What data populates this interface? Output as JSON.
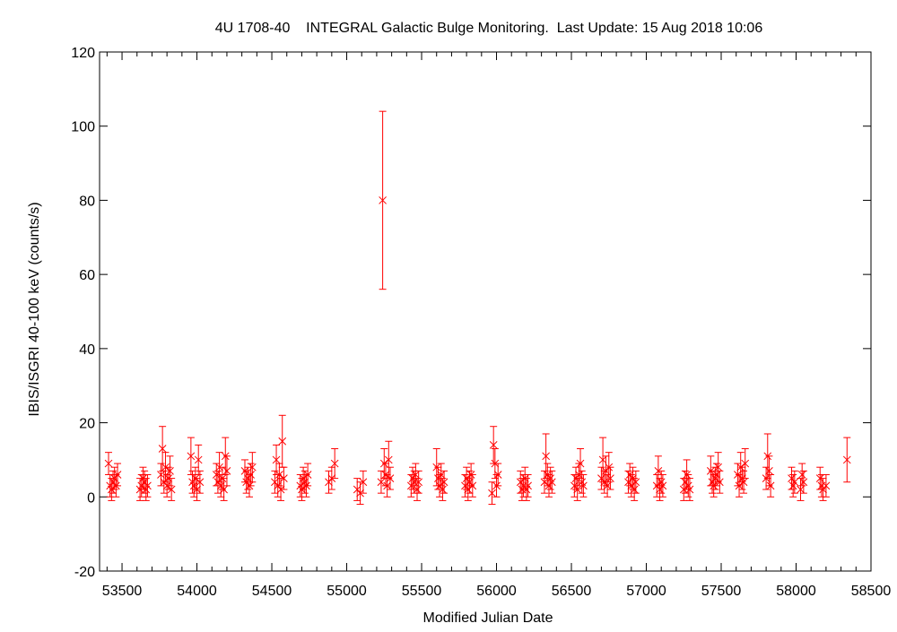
{
  "chart_data": {
    "type": "scatter",
    "title": "4U 1708-40    INTEGRAL Galactic Bulge Monitoring.  Last Update: 15 Aug 2018 10:06",
    "xlabel": "Modified Julian Date",
    "ylabel": "IBIS/ISGRI 40-100 keV (counts/s)",
    "xlim": [
      53350,
      58500
    ],
    "ylim": [
      -20,
      120
    ],
    "xticks": [
      53500,
      54000,
      54500,
      55000,
      55500,
      56000,
      56500,
      57000,
      57500,
      58000,
      58500
    ],
    "yticks": [
      -20,
      0,
      20,
      40,
      60,
      80,
      100,
      120
    ],
    "grid": false,
    "marker": "x",
    "error_bars": true,
    "color": "#ff0000",
    "series": [
      {
        "x": [
          53410,
          53420,
          53430,
          53440,
          53450,
          53460,
          53470,
          53620,
          53630,
          53640,
          53650,
          53660,
          53670,
          53760,
          53770,
          53780,
          53790,
          53800,
          53810,
          53820,
          53830,
          53960,
          53970,
          53980,
          53990,
          54000,
          54010,
          54020,
          54130,
          54140,
          54150,
          54160,
          54170,
          54180,
          54190,
          54200,
          54320,
          54330,
          54340,
          54350,
          54360,
          54370,
          54520,
          54530,
          54540,
          54550,
          54560,
          54570,
          54580,
          54690,
          54700,
          54710,
          54720,
          54730,
          54740,
          54880,
          54900,
          54920,
          55070,
          55090,
          55110,
          55230,
          55240,
          55250,
          55260,
          55270,
          55280,
          55290,
          55430,
          55440,
          55450,
          55460,
          55470,
          55480,
          55600,
          55610,
          55620,
          55630,
          55640,
          55650,
          55790,
          55800,
          55810,
          55820,
          55830,
          55840,
          55970,
          55980,
          55990,
          56000,
          56010,
          56160,
          56170,
          56180,
          56190,
          56200,
          56210,
          56320,
          56330,
          56340,
          56350,
          56360,
          56370,
          56520,
          56530,
          56540,
          56550,
          56560,
          56570,
          56580,
          56700,
          56710,
          56720,
          56730,
          56740,
          56750,
          56760,
          56880,
          56890,
          56900,
          56910,
          56920,
          56930,
          57070,
          57080,
          57090,
          57100,
          57110,
          57250,
          57260,
          57270,
          57280,
          57290,
          57430,
          57440,
          57450,
          57460,
          57470,
          57480,
          57490,
          57610,
          57620,
          57630,
          57640,
          57650,
          57660,
          57800,
          57810,
          57820,
          57830,
          57970,
          57980,
          57990,
          58030,
          58040,
          58050,
          58160,
          58170,
          58180,
          58200,
          58340
        ],
        "y": [
          9,
          3,
          2,
          4,
          5,
          3,
          6,
          2,
          3,
          5,
          4,
          2,
          3,
          6,
          13,
          4,
          8,
          3,
          5,
          7,
          2,
          11,
          4,
          3,
          5,
          2,
          10,
          4,
          6,
          4,
          8,
          3,
          5,
          2,
          11,
          7,
          7,
          4,
          5,
          3,
          6,
          8,
          4,
          10,
          3,
          6,
          2,
          15,
          5,
          3,
          2,
          5,
          4,
          3,
          6,
          4,
          5,
          9,
          2,
          1,
          4,
          4,
          80,
          9,
          6,
          3,
          10,
          5,
          3,
          5,
          4,
          6,
          2,
          4,
          8,
          5,
          3,
          6,
          2,
          4,
          3,
          5,
          2,
          4,
          6,
          3,
          1,
          14,
          9,
          3,
          6,
          4,
          2,
          3,
          5,
          2,
          3,
          4,
          11,
          6,
          3,
          5,
          4,
          3,
          5,
          2,
          6,
          9,
          4,
          3,
          5,
          10,
          4,
          7,
          3,
          8,
          5,
          4,
          6,
          3,
          5,
          2,
          4,
          3,
          7,
          2,
          4,
          3,
          2,
          4,
          6,
          3,
          2,
          7,
          4,
          3,
          5,
          6,
          8,
          4,
          6,
          3,
          8,
          5,
          4,
          9,
          5,
          11,
          7,
          3,
          5,
          3,
          4,
          2,
          6,
          4,
          5,
          3,
          2,
          3,
          10
        ],
        "err": [
          3,
          3,
          3,
          3,
          3,
          3,
          3,
          3,
          3,
          3,
          3,
          3,
          3,
          3,
          6,
          3,
          4,
          3,
          3,
          4,
          3,
          5,
          3,
          3,
          3,
          3,
          4,
          3,
          3,
          3,
          4,
          3,
          3,
          3,
          5,
          4,
          3,
          3,
          3,
          3,
          3,
          4,
          3,
          4,
          3,
          3,
          3,
          7,
          3,
          3,
          3,
          3,
          3,
          3,
          3,
          3,
          3,
          4,
          3,
          3,
          3,
          3,
          24,
          4,
          3,
          3,
          5,
          3,
          3,
          3,
          3,
          3,
          3,
          3,
          5,
          3,
          3,
          3,
          3,
          3,
          3,
          3,
          3,
          3,
          3,
          3,
          3,
          5,
          4,
          3,
          3,
          3,
          3,
          3,
          3,
          3,
          3,
          3,
          6,
          3,
          3,
          3,
          3,
          3,
          3,
          3,
          3,
          4,
          3,
          3,
          3,
          6,
          3,
          4,
          3,
          4,
          3,
          3,
          3,
          3,
          3,
          3,
          3,
          3,
          4,
          3,
          3,
          3,
          3,
          3,
          4,
          3,
          3,
          4,
          3,
          3,
          3,
          3,
          4,
          3,
          3,
          3,
          4,
          3,
          3,
          4,
          3,
          6,
          4,
          3,
          3,
          3,
          3,
          3,
          3,
          3,
          3,
          3,
          3,
          3,
          6
        ]
      }
    ]
  }
}
